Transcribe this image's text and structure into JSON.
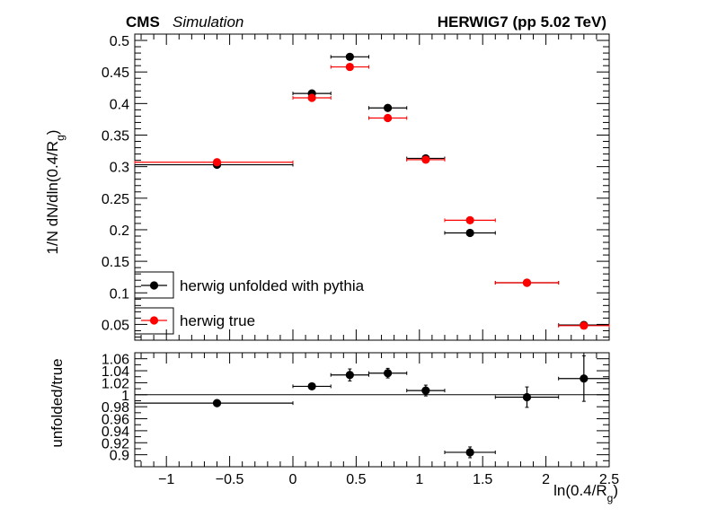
{
  "header": {
    "experiment": "CMS",
    "experiment_note": "Simulation",
    "sample": "HERWIG7 (pp 5.02 TeV)"
  },
  "chart_data": [
    {
      "type": "scatter",
      "panel": "top",
      "ylabel_main": "1/N dN/dln(0.4/R",
      "ylabel_sub": "g",
      "ylabel_close": ")",
      "ylim": [
        0.025,
        0.51
      ],
      "xlim": [
        -1.25,
        2.5
      ],
      "yticks": [
        "0.05",
        "0.1",
        "0.15",
        "0.2",
        "0.25",
        "0.3",
        "0.35",
        "0.4",
        "0.45",
        "0.5"
      ],
      "ytick_values": [
        0.05,
        0.1,
        0.15,
        0.2,
        0.25,
        0.3,
        0.35,
        0.4,
        0.45,
        0.5
      ],
      "legend_position": "bottom-left",
      "series": [
        {
          "name": "herwig unfolded with pythia",
          "color": "#000000",
          "points": [
            {
              "x": -0.6,
              "y": 0.303,
              "xlo": -1.25,
              "xhi": 0.0
            },
            {
              "x": 0.15,
              "y": 0.416,
              "xlo": 0.0,
              "xhi": 0.3
            },
            {
              "x": 0.45,
              "y": 0.474,
              "xlo": 0.3,
              "xhi": 0.6
            },
            {
              "x": 0.75,
              "y": 0.393,
              "xlo": 0.6,
              "xhi": 0.9
            },
            {
              "x": 1.05,
              "y": 0.313,
              "xlo": 0.9,
              "xhi": 1.2
            },
            {
              "x": 1.4,
              "y": 0.195,
              "xlo": 1.2,
              "xhi": 1.6
            },
            {
              "x": 1.85,
              "y": 0.116,
              "xlo": 1.6,
              "xhi": 2.1
            },
            {
              "x": 2.3,
              "y": 0.049,
              "xlo": 2.1,
              "xhi": 2.5
            }
          ]
        },
        {
          "name": "herwig true",
          "color": "#ff0000",
          "points": [
            {
              "x": -0.6,
              "y": 0.307,
              "xlo": -1.25,
              "xhi": 0.0
            },
            {
              "x": 0.15,
              "y": 0.409,
              "xlo": 0.0,
              "xhi": 0.3
            },
            {
              "x": 0.45,
              "y": 0.458,
              "xlo": 0.3,
              "xhi": 0.6
            },
            {
              "x": 0.75,
              "y": 0.377,
              "xlo": 0.6,
              "xhi": 0.9
            },
            {
              "x": 1.05,
              "y": 0.311,
              "xlo": 0.9,
              "xhi": 1.2
            },
            {
              "x": 1.4,
              "y": 0.215,
              "xlo": 1.2,
              "xhi": 1.6
            },
            {
              "x": 1.85,
              "y": 0.116,
              "xlo": 1.6,
              "xhi": 2.1
            },
            {
              "x": 2.3,
              "y": 0.048,
              "xlo": 2.1,
              "xhi": 2.5
            }
          ]
        }
      ]
    },
    {
      "type": "scatter",
      "panel": "ratio",
      "ylabel": "unfolded/true",
      "xlabel_main": "ln(0.4/R",
      "xlabel_sub": "g",
      "xlabel_close": ")",
      "ylim": [
        0.88,
        1.07
      ],
      "xlim": [
        -1.25,
        2.5
      ],
      "reference_line": 1.0,
      "yticks": [
        "0.9",
        "0.92",
        "0.94",
        "0.96",
        "0.98",
        "1",
        "1.02",
        "1.04",
        "1.06"
      ],
      "ytick_values": [
        0.9,
        0.92,
        0.94,
        0.96,
        0.98,
        1.0,
        1.02,
        1.04,
        1.06
      ],
      "xticks": [
        "−1",
        "−0.5",
        "0",
        "0.5",
        "1",
        "1.5",
        "2",
        "2.5"
      ],
      "xtick_values": [
        -1,
        -0.5,
        0,
        0.5,
        1,
        1.5,
        2,
        2.5
      ],
      "series": [
        {
          "name": "",
          "color": "#000000",
          "points": [
            {
              "x": -0.6,
              "y": 0.986,
              "xlo": -1.25,
              "xhi": 0.0,
              "yerr": 0.002
            },
            {
              "x": 0.15,
              "y": 1.014,
              "xlo": 0.0,
              "xhi": 0.3,
              "yerr": 0.005
            },
            {
              "x": 0.45,
              "y": 1.033,
              "xlo": 0.3,
              "xhi": 0.6,
              "yerr": 0.01
            },
            {
              "x": 0.75,
              "y": 1.036,
              "xlo": 0.6,
              "xhi": 0.9,
              "yerr": 0.008
            },
            {
              "x": 1.05,
              "y": 1.007,
              "xlo": 0.9,
              "xhi": 1.2,
              "yerr": 0.009
            },
            {
              "x": 1.4,
              "y": 0.904,
              "xlo": 1.2,
              "xhi": 1.6,
              "yerr": 0.009
            },
            {
              "x": 1.85,
              "y": 0.996,
              "xlo": 1.6,
              "xhi": 2.1,
              "yerr": 0.017
            },
            {
              "x": 2.3,
              "y": 1.027,
              "xlo": 2.1,
              "xhi": 2.5,
              "yerr": 0.038
            }
          ]
        }
      ]
    }
  ]
}
